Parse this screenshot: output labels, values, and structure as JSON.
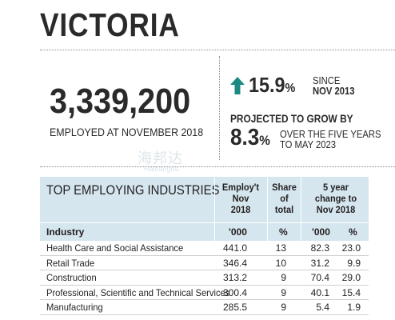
{
  "header": {
    "title": "VICTORIA"
  },
  "employment": {
    "total": "3,339,200",
    "caption": "EMPLOYED AT NOVEMBER 2018"
  },
  "growth": {
    "value": "15.9",
    "unit": "%",
    "since_line1": "SINCE",
    "since_line2": "NOV 2013",
    "arrow_color": "#1a8a82"
  },
  "projection": {
    "label": "PROJECTED TO GROW BY",
    "value": "8.3",
    "unit": "%",
    "desc_line1": "OVER THE FIVE YEARS",
    "desc_line2": "TO MAY 2023"
  },
  "watermark": {
    "text": "海邦达",
    "sub": "Haibangda"
  },
  "table": {
    "title": "TOP EMPLOYING INDUSTRIES",
    "col_employ": [
      "Employ't",
      "Nov",
      "2018"
    ],
    "col_share": [
      "Share",
      "of",
      "total"
    ],
    "col_change": [
      "5 year",
      "change to",
      "Nov 2018"
    ],
    "sub_industry": "Industry",
    "sub_employ": "'000",
    "sub_share": "%",
    "sub_change_000": "'000",
    "sub_change_pct": "%",
    "rows": [
      {
        "industry": "Health Care and Social Assistance",
        "employ": "441.0",
        "share": "13",
        "change_000": "82.3",
        "change_pct": "23.0"
      },
      {
        "industry": "Retail Trade",
        "employ": "346.4",
        "share": "10",
        "change_000": "31.2",
        "change_pct": "9.9"
      },
      {
        "industry": "Construction",
        "employ": "313.2",
        "share": "9",
        "change_000": "70.4",
        "change_pct": "29.0"
      },
      {
        "industry": "Professional, Scientific and Technical Services",
        "employ": "300.4",
        "share": "9",
        "change_000": "40.1",
        "change_pct": "15.4"
      },
      {
        "industry": "Manufacturing",
        "employ": "285.5",
        "share": "9",
        "change_000": "5.4",
        "change_pct": "1.9"
      }
    ],
    "header_bg": "#d5e6ee"
  }
}
